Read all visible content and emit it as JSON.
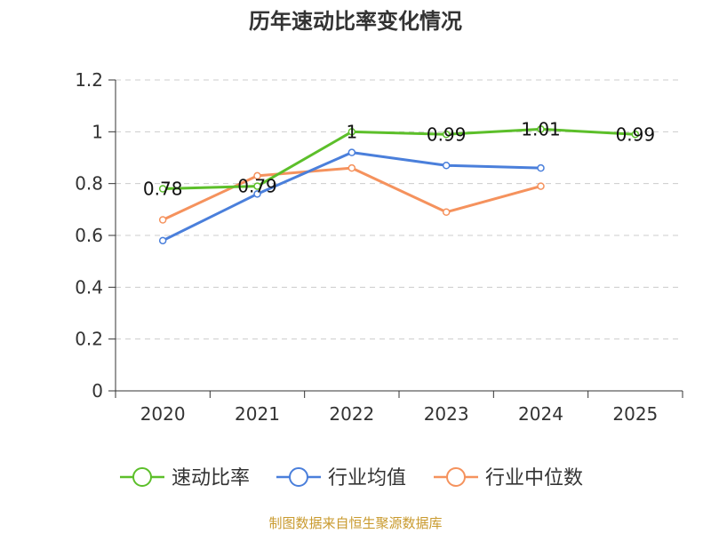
{
  "chart_data": {
    "type": "line",
    "title": "历年速动比率变化情况",
    "categories": [
      "2020",
      "2021",
      "2022",
      "2023",
      "2024",
      "2025"
    ],
    "ylim": [
      0,
      1.2
    ],
    "yticks": [
      "0",
      "0.2",
      "0.4",
      "0.6",
      "0.8",
      "1",
      "1.2"
    ],
    "grid": true,
    "legend_position": "bottom",
    "series": [
      {
        "name": "速动比率",
        "color": "#5cbf2a",
        "values": [
          0.78,
          0.79,
          1.0,
          0.99,
          1.01,
          0.99
        ],
        "labels": [
          "0.78",
          "0.79",
          "1",
          "0.99",
          "1.01",
          "0.99"
        ]
      },
      {
        "name": "行业均值",
        "color": "#4a7fdb",
        "values": [
          0.58,
          0.76,
          0.92,
          0.87,
          0.86,
          null
        ]
      },
      {
        "name": "行业中位数",
        "color": "#f5925d",
        "values": [
          0.66,
          0.83,
          0.86,
          0.69,
          0.79,
          null
        ]
      }
    ]
  },
  "source": "制图数据来自恒生聚源数据库"
}
